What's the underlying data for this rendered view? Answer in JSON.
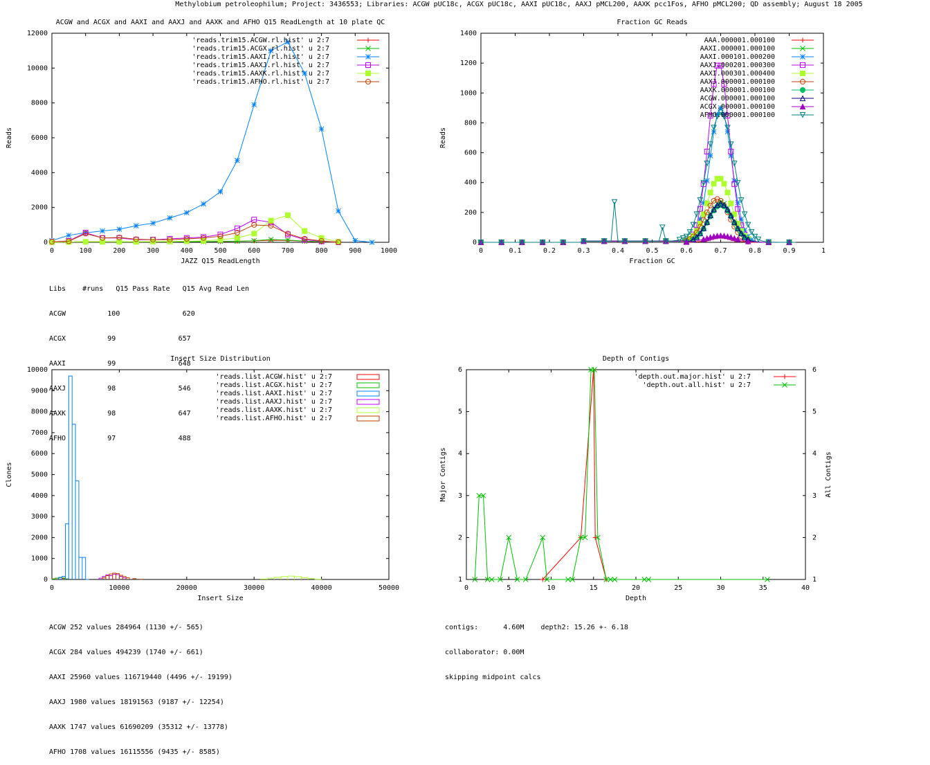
{
  "page_title": "Methylobium petroleophilum; Project: 3436553; Libraries: ACGW pUC18c, ACGX pUC18c, AAXI pUC18c, AAXJ pMCL200, AAXK pcc1Fos, AFHO pMCL200; QD assembly; August 18 2005",
  "colors": {
    "red": "#ff0000",
    "green": "#00c000",
    "blue": "#0080ff",
    "magenta": "#c000ff",
    "lime": "#adff2f",
    "brown": "#c04000",
    "teal": "#00c060",
    "navy": "#000080",
    "purple": "#a000c0",
    "cyan": "#008080"
  },
  "chart_data": [
    {
      "id": "readlength",
      "type": "line",
      "title": "ACGW and ACGX and AAXI and AAXJ and AAXK and AFHO Q15 ReadLength at 10 plate QC",
      "xlabel": "JAZZ Q15 ReadLength",
      "ylabel": "Reads",
      "xlim": [
        0,
        1000
      ],
      "ylim": [
        0,
        12000
      ],
      "xticks": [
        0,
        100,
        200,
        300,
        400,
        500,
        600,
        700,
        800,
        900,
        1000
      ],
      "yticks": [
        0,
        2000,
        4000,
        6000,
        8000,
        10000,
        12000
      ],
      "series": [
        {
          "name": "'reads.trim15.ACGW.rl.hist' u 2:7",
          "color": "red",
          "marker": "plus",
          "points": [
            [
              0,
              0
            ],
            [
              50,
              20
            ],
            [
              100,
              40
            ],
            [
              150,
              40
            ],
            [
              200,
              30
            ],
            [
              250,
              30
            ],
            [
              300,
              30
            ],
            [
              350,
              30
            ],
            [
              400,
              40
            ],
            [
              450,
              40
            ],
            [
              500,
              40
            ],
            [
              550,
              60
            ],
            [
              600,
              80
            ],
            [
              650,
              120
            ],
            [
              700,
              110
            ],
            [
              750,
              60
            ],
            [
              800,
              20
            ],
            [
              850,
              0
            ]
          ]
        },
        {
          "name": "'reads.trim15.ACGX.rl.hist' u 2:7",
          "color": "green",
          "marker": "x",
          "points": [
            [
              0,
              0
            ],
            [
              50,
              20
            ],
            [
              100,
              30
            ],
            [
              150,
              30
            ],
            [
              200,
              30
            ],
            [
              250,
              30
            ],
            [
              300,
              30
            ],
            [
              350,
              30
            ],
            [
              400,
              40
            ],
            [
              450,
              40
            ],
            [
              500,
              50
            ],
            [
              550,
              60
            ],
            [
              600,
              90
            ],
            [
              650,
              160
            ],
            [
              700,
              130
            ],
            [
              750,
              70
            ],
            [
              800,
              30
            ],
            [
              850,
              0
            ]
          ]
        },
        {
          "name": "'reads.trim15.AAXI.rl.hist' u 2:7",
          "color": "blue",
          "marker": "star",
          "points": [
            [
              0,
              100
            ],
            [
              50,
              400
            ],
            [
              100,
              550
            ],
            [
              150,
              650
            ],
            [
              200,
              750
            ],
            [
              250,
              950
            ],
            [
              300,
              1100
            ],
            [
              350,
              1400
            ],
            [
              400,
              1700
            ],
            [
              450,
              2200
            ],
            [
              500,
              2900
            ],
            [
              550,
              4700
            ],
            [
              600,
              7900
            ],
            [
              650,
              11000
            ],
            [
              700,
              11500
            ],
            [
              750,
              9700
            ],
            [
              800,
              6500
            ],
            [
              850,
              1800
            ],
            [
              900,
              100
            ],
            [
              950,
              0
            ]
          ]
        },
        {
          "name": "'reads.trim15.AAXJ.rl.hist' u 2:7",
          "color": "magenta",
          "marker": "square",
          "points": [
            [
              0,
              30
            ],
            [
              50,
              80
            ],
            [
              100,
              550
            ],
            [
              150,
              250
            ],
            [
              200,
              250
            ],
            [
              250,
              150
            ],
            [
              300,
              150
            ],
            [
              350,
              200
            ],
            [
              400,
              250
            ],
            [
              450,
              300
            ],
            [
              500,
              450
            ],
            [
              550,
              800
            ],
            [
              600,
              1300
            ],
            [
              650,
              1150
            ],
            [
              700,
              450
            ],
            [
              750,
              150
            ],
            [
              800,
              60
            ],
            [
              850,
              0
            ]
          ]
        },
        {
          "name": "'reads.trim15.AAXK.rl.hist' u 2:7",
          "color": "lime",
          "marker": "fsquare",
          "points": [
            [
              0,
              10
            ],
            [
              50,
              20
            ],
            [
              100,
              30
            ],
            [
              150,
              30
            ],
            [
              200,
              30
            ],
            [
              250,
              30
            ],
            [
              300,
              40
            ],
            [
              350,
              50
            ],
            [
              400,
              60
            ],
            [
              450,
              80
            ],
            [
              500,
              150
            ],
            [
              550,
              250
            ],
            [
              600,
              500
            ],
            [
              650,
              1250
            ],
            [
              700,
              1550
            ],
            [
              750,
              650
            ],
            [
              800,
              250
            ],
            [
              850,
              30
            ]
          ]
        },
        {
          "name": "'reads.trim15.AFHO.rl.hist' u 2:7",
          "color": "brown",
          "marker": "circle",
          "points": [
            [
              0,
              30
            ],
            [
              50,
              60
            ],
            [
              100,
              500
            ],
            [
              150,
              250
            ],
            [
              200,
              280
            ],
            [
              250,
              180
            ],
            [
              300,
              150
            ],
            [
              350,
              150
            ],
            [
              400,
              200
            ],
            [
              450,
              250
            ],
            [
              500,
              350
            ],
            [
              550,
              550
            ],
            [
              600,
              1000
            ],
            [
              650,
              950
            ],
            [
              700,
              500
            ],
            [
              750,
              200
            ],
            [
              800,
              80
            ],
            [
              850,
              10
            ]
          ]
        }
      ]
    },
    {
      "id": "gc",
      "type": "line",
      "title": "Fraction GC Reads",
      "xlabel": "Fraction GC",
      "ylabel": "Reads",
      "xlim": [
        0,
        1
      ],
      "ylim": [
        0,
        1400
      ],
      "xticks": [
        0,
        0.1,
        0.2,
        0.3,
        0.4,
        0.5,
        0.6,
        0.7,
        0.8,
        0.9,
        1
      ],
      "yticks": [
        0,
        200,
        400,
        600,
        800,
        1000,
        1200,
        1400
      ],
      "series": [
        {
          "name": "AAA.000001.000100",
          "color": "red",
          "marker": "plus",
          "peak": 40,
          "mu": 0.7,
          "sigma": 0.03
        },
        {
          "name": "AAXI.000001.000100",
          "color": "green",
          "marker": "x",
          "peak": 270,
          "mu": 0.7,
          "sigma": 0.035
        },
        {
          "name": "AAXI.000101.000200",
          "color": "blue",
          "marker": "star",
          "peak": 900,
          "mu": 0.7,
          "sigma": 0.032
        },
        {
          "name": "AAXJ.000201.000300",
          "color": "magenta",
          "marker": "square",
          "peak": 1200,
          "mu": 0.695,
          "sigma": 0.03
        },
        {
          "name": "AAXI.000301.000400",
          "color": "lime",
          "marker": "fsquare",
          "peak": 430,
          "mu": 0.695,
          "sigma": 0.035
        },
        {
          "name": "AAXJ.000001.000100",
          "color": "brown",
          "marker": "circle",
          "peak": 290,
          "mu": 0.69,
          "sigma": 0.035
        },
        {
          "name": "AAXK.000001.000100",
          "color": "teal",
          "marker": "fcircle",
          "peak": 250,
          "mu": 0.7,
          "sigma": 0.035
        },
        {
          "name": "ACGW.000001.000100",
          "color": "navy",
          "marker": "triangle",
          "peak": 260,
          "mu": 0.7,
          "sigma": 0.035
        },
        {
          "name": "ACGX.000001.000100",
          "color": "purple",
          "marker": "ftriangle",
          "peak": 45,
          "mu": 0.7,
          "sigma": 0.04
        },
        {
          "name": "AFHO.000001.000100",
          "color": "cyan",
          "marker": "dtriangle",
          "peak": 870,
          "mu": 0.7,
          "sigma": 0.04
        }
      ]
    },
    {
      "id": "insert",
      "type": "histogram",
      "title": "Insert Size Distribution",
      "xlabel": "Insert Size",
      "ylabel": "Clones",
      "xlim": [
        0,
        50000
      ],
      "ylim": [
        0,
        10000
      ],
      "xticks": [
        0,
        10000,
        20000,
        30000,
        40000,
        50000
      ],
      "yticks": [
        0,
        1000,
        2000,
        3000,
        4000,
        5000,
        6000,
        7000,
        8000,
        9000,
        10000
      ],
      "series": [
        {
          "name": "'reads.list.ACGW.hist' u 2:7",
          "color": "red",
          "bins": [
            [
              0,
              30
            ],
            [
              500,
              60
            ],
            [
              1000,
              80
            ],
            [
              1500,
              50
            ],
            [
              2000,
              20
            ]
          ]
        },
        {
          "name": "'reads.list.ACGX.hist' u 2:7",
          "color": "green",
          "bins": [
            [
              0,
              20
            ],
            [
              500,
              60
            ],
            [
              1000,
              90
            ],
            [
              1500,
              70
            ],
            [
              2000,
              30
            ]
          ]
        },
        {
          "name": "'reads.list.AAXI.hist' u 2:7",
          "color": "blue",
          "bins": [
            [
              1000,
              100
            ],
            [
              1500,
              150
            ],
            [
              2000,
              2650
            ],
            [
              2500,
              9700
            ],
            [
              3000,
              7400
            ],
            [
              3500,
              4700
            ],
            [
              4000,
              1050
            ],
            [
              4500,
              1050
            ],
            [
              5000,
              0
            ]
          ]
        },
        {
          "name": "'reads.list.AAXJ.hist' u 2:7",
          "color": "magenta",
          "bins": [
            [
              7000,
              60
            ],
            [
              7500,
              150
            ],
            [
              8000,
              220
            ],
            [
              8500,
              180
            ],
            [
              9000,
              250
            ],
            [
              9500,
              230
            ],
            [
              10000,
              150
            ],
            [
              10500,
              80
            ]
          ]
        },
        {
          "name": "'reads.list.AAXK.hist' u 2:7",
          "color": "lime",
          "bins": [
            [
              31000,
              20
            ],
            [
              32000,
              60
            ],
            [
              33000,
              100
            ],
            [
              34000,
              140
            ],
            [
              35000,
              160
            ],
            [
              36000,
              130
            ],
            [
              37000,
              90
            ],
            [
              38000,
              40
            ],
            [
              39000,
              10
            ]
          ]
        },
        {
          "name": "'reads.list.AFHO.hist' u 2:7",
          "color": "brown",
          "bins": [
            [
              7500,
              80
            ],
            [
              8000,
              180
            ],
            [
              8500,
              260
            ],
            [
              9000,
              300
            ],
            [
              9500,
              280
            ],
            [
              10000,
              200
            ],
            [
              10500,
              140
            ],
            [
              11000,
              80
            ],
            [
              12000,
              40
            ],
            [
              13000,
              10
            ]
          ]
        }
      ]
    },
    {
      "id": "depth",
      "type": "line",
      "title": "Depth of Contigs",
      "xlabel": "Depth",
      "ylabel": "Major Contigs",
      "y2label": "All Contigs",
      "xlim": [
        0,
        40
      ],
      "ylim": [
        1,
        6
      ],
      "xticks": [
        0,
        5,
        10,
        15,
        20,
        25,
        30,
        35,
        40
      ],
      "yticks": [
        1,
        2,
        3,
        4,
        5,
        6
      ],
      "series": [
        {
          "name": "'depth.out.major.hist' u 2:7",
          "color": "red",
          "marker": "plus",
          "points": [
            [
              9,
              1
            ],
            [
              13.5,
              2
            ],
            [
              15,
              6
            ],
            [
              15.2,
              2
            ],
            [
              16.5,
              1
            ]
          ]
        },
        {
          "name": "'depth.out.all.hist' u 2:7",
          "color": "green",
          "marker": "x",
          "points": [
            [
              1,
              1
            ],
            [
              1.5,
              3
            ],
            [
              2,
              3
            ],
            [
              2.5,
              1
            ],
            [
              3,
              1
            ],
            [
              4,
              1
            ],
            [
              5,
              2
            ],
            [
              6,
              1
            ],
            [
              7,
              1
            ],
            [
              9,
              2
            ],
            [
              9.5,
              1
            ],
            [
              12,
              1
            ],
            [
              12.5,
              1
            ],
            [
              13.5,
              2
            ],
            [
              14,
              2
            ],
            [
              14.7,
              6
            ],
            [
              15.1,
              6
            ],
            [
              15.5,
              2
            ],
            [
              16.5,
              1
            ],
            [
              17,
              1
            ],
            [
              17.5,
              1
            ],
            [
              21,
              1
            ],
            [
              21.5,
              1
            ],
            [
              35.5,
              1
            ]
          ]
        }
      ]
    }
  ],
  "readlength_table": {
    "header": "Libs    #runs   Q15 Pass Rate   Q15 Avg Read Len",
    "rows": [
      "ACGW          100               620",
      "ACGX          99               657",
      "AAXI          99               648",
      "AAXJ          98               546",
      "AAXK          98               647",
      "AFHO          97               488"
    ]
  },
  "insert_stats": [
    "ACGW 252 values 284964 (1130 +/- 565)",
    "ACGX 284 values 494239 (1740 +/- 661)",
    "AAXI 25960 values 116719440 (4496 +/- 19199)",
    "AAXJ 1980 values 18191563 (9187 +/- 12254)",
    "AAXK 1747 values 61690209 (35312 +/- 13778)",
    "AFHO 1708 values 16115556 (9435 +/- 8585)"
  ],
  "depth_stats": [
    "contigs:      4.60M    depth2: 15.26 +- 6.18",
    "collaborator: 0.00M",
    "skipping midpoint calcs"
  ]
}
